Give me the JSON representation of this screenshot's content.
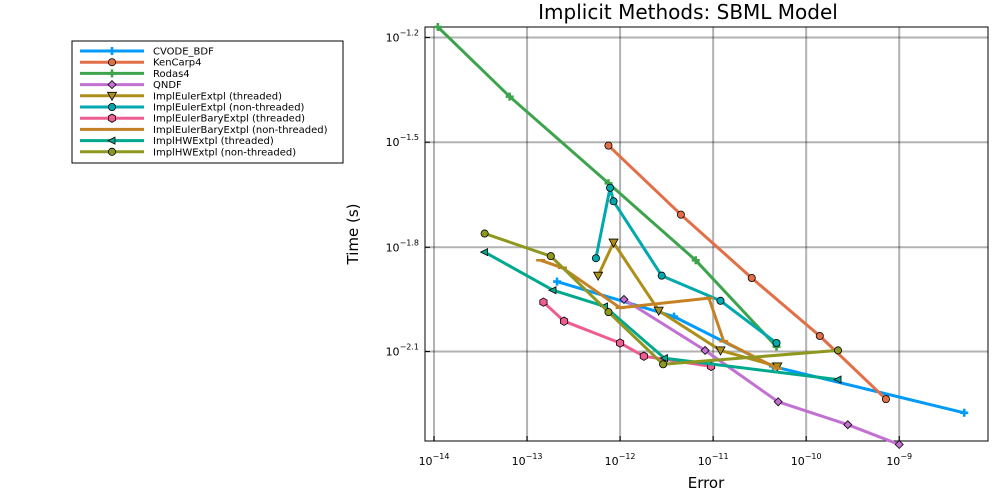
{
  "chart_data": {
    "type": "line",
    "title": "Implicit Methods: SBML Model",
    "xlabel": "Error",
    "ylabel": "Time (s)",
    "xscale": "log",
    "yscale": "log",
    "xlim": [
      8e-15,
      9e-09
    ],
    "ylim": [
      0.0044,
      0.0676
    ],
    "grid": true,
    "legend_position": "outside-left",
    "x_ticks": [
      {
        "value": 1e-14,
        "base": "10",
        "exp": "−14"
      },
      {
        "value": 1e-13,
        "base": "10",
        "exp": "−13"
      },
      {
        "value": 1e-12,
        "base": "10",
        "exp": "−12"
      },
      {
        "value": 1e-11,
        "base": "10",
        "exp": "−11"
      },
      {
        "value": 1e-10,
        "base": "10",
        "exp": "−10"
      },
      {
        "value": 1e-09,
        "base": "10",
        "exp": "−9"
      }
    ],
    "y_ticks": [
      {
        "value": 0.0631,
        "base": "10",
        "exp": "−1.2"
      },
      {
        "value": 0.0316,
        "base": "10",
        "exp": "−1.5"
      },
      {
        "value": 0.0158,
        "base": "10",
        "exp": "−1.8"
      },
      {
        "value": 0.00794,
        "base": "10",
        "exp": "−2.1"
      }
    ],
    "series": [
      {
        "name": "CVODE_BDF",
        "color": "#009af9",
        "marker": "cross",
        "x": [
          2.1e-13,
          3.8e-12,
          4.4e-11,
          5e-09
        ],
        "y": [
          0.0126,
          0.01,
          0.0072,
          0.0053
        ]
      },
      {
        "name": "KenCarp4",
        "color": "#e26f46",
        "marker": "circle",
        "x": [
          7.5e-13,
          4.5e-12,
          2.6e-11,
          1.4e-10,
          7.2e-10
        ],
        "y": [
          0.0309,
          0.0196,
          0.0129,
          0.0088,
          0.0058
        ]
      },
      {
        "name": "Rodas4",
        "color": "#3da44d",
        "marker": "cross",
        "x": [
          1.1e-14,
          6.5e-14,
          7.5e-13,
          6.5e-12,
          4.8e-11
        ],
        "y": [
          0.0676,
          0.0427,
          0.0241,
          0.0145,
          0.0082
        ]
      },
      {
        "name": "QNDF",
        "color": "#c271d2",
        "marker": "diamond",
        "x": [
          1.1e-12,
          8.2e-12,
          5e-11,
          2.8e-10,
          1e-09
        ],
        "y": [
          0.0112,
          0.008,
          0.0057,
          0.0049,
          0.0043
        ]
      },
      {
        "name": "ImplEulerExtpl (threaded)",
        "color": "#ac8e18",
        "marker": "triangle-down",
        "x": [
          5.8e-13,
          8.5e-13,
          2.6e-12,
          1.2e-11,
          4.9e-11
        ],
        "y": [
          0.0131,
          0.0163,
          0.0104,
          0.008,
          0.0072
        ]
      },
      {
        "name": "ImplEulerExtpl (non-threaded)",
        "color": "#00a9ad",
        "marker": "circle",
        "x": [
          5.5e-13,
          7.8e-13,
          8.5e-13,
          2.8e-12,
          1.2e-11,
          4.8e-11
        ],
        "y": [
          0.0147,
          0.0234,
          0.0214,
          0.0131,
          0.0111,
          0.0084
        ]
      },
      {
        "name": "ImplEulerBaryExtpl (threaded)",
        "color": "#ed5d92",
        "marker": "hexagon",
        "x": [
          1.5e-13,
          2.5e-13,
          1e-12,
          1.8e-12,
          9.5e-12
        ],
        "y": [
          0.011,
          0.0097,
          0.0084,
          0.0077,
          0.0072
        ]
      },
      {
        "name": "ImplEulerBaryExtpl (non-threaded)",
        "color": "#c68125",
        "marker": "hline",
        "x": [
          1.4e-13,
          2.4e-13,
          1e-12,
          9e-12,
          1.3e-11,
          4.9e-11
        ],
        "y": [
          0.0145,
          0.0138,
          0.0106,
          0.0113,
          0.0085,
          0.0071
        ]
      },
      {
        "name": "ImplHWExtpl (threaded)",
        "color": "#00a98d",
        "marker": "triangle-left",
        "x": [
          3.5e-14,
          1.9e-13,
          6.8e-13,
          3e-12,
          2.2e-10
        ],
        "y": [
          0.0153,
          0.0119,
          0.0107,
          0.0076,
          0.0066
        ]
      },
      {
        "name": "ImplHWExtpl (non-threaded)",
        "color": "#8e971e",
        "marker": "circle",
        "x": [
          3.5e-14,
          1.8e-13,
          7.5e-13,
          2.9e-12,
          2.2e-10
        ],
        "y": [
          0.0173,
          0.0149,
          0.0103,
          0.0073,
          0.008
        ]
      }
    ]
  }
}
